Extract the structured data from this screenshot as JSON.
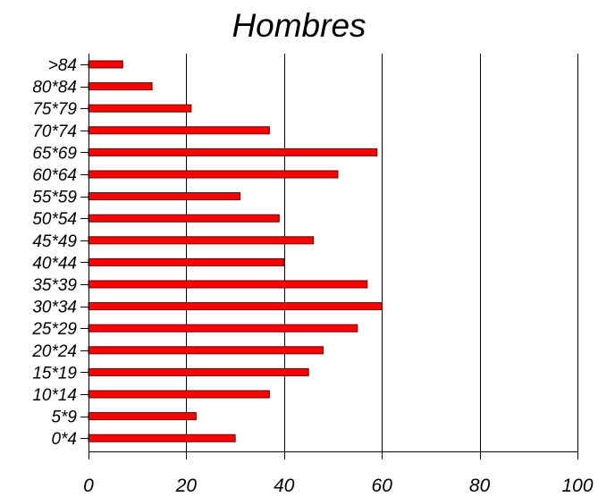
{
  "chart_data": {
    "type": "bar",
    "orientation": "horizontal",
    "title": "Hombres",
    "categories": [
      ">84",
      "80*84",
      "75*79",
      "70*74",
      "65*69",
      "60*64",
      "55*59",
      "50*54",
      "45*49",
      "40*44",
      "35*39",
      "30*34",
      "25*29",
      "20*24",
      "15*19",
      "10*14",
      "5*9",
      "0*4"
    ],
    "values": [
      7,
      13,
      21,
      37,
      59,
      51,
      31,
      39,
      46,
      40,
      57,
      60,
      55,
      48,
      45,
      37,
      22,
      30
    ],
    "xlim": [
      0,
      100
    ],
    "xticks": [
      "0",
      "20",
      "40",
      "60",
      "80",
      "100"
    ],
    "grid": "vertical",
    "bar_color": "#ff0000",
    "bar_edge_color": "#5a0000"
  }
}
